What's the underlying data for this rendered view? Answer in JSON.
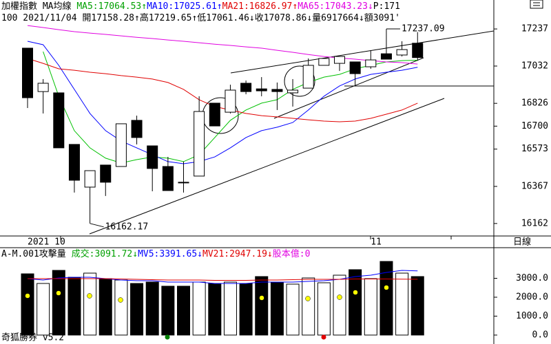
{
  "chart_data": [
    {
      "type": "candlestick",
      "header": [
        [
          {
            "text": "加權指數 MA均線 ",
            "color": "#000000"
          },
          {
            "text": "MA5:17064.53↑",
            "color": "#00a000"
          },
          {
            "text": "MA10:17025.61↑",
            "color": "#0000ff"
          },
          {
            "text": "MA21:16826.97↑",
            "color": "#e00000"
          },
          {
            "text": "MA65:17043.23↓",
            "color": "#e000e0"
          },
          {
            "text": "P:171",
            "color": "#000000"
          }
        ],
        [
          {
            "text": "100 2021/11/04 開17158.28↑高17219.65↑低17061.46↓收17078.86↓量6917664↓額3091'",
            "color": "#000000"
          }
        ]
      ],
      "categories": [
        "2021 10",
        null,
        null,
        null,
        null,
        null,
        null,
        null,
        null,
        null,
        null,
        null,
        null,
        null,
        null,
        null,
        null,
        null,
        null,
        null,
        null,
        null,
        "11",
        null,
        null,
        null
      ],
      "open": [
        17131,
        16891,
        16884,
        16599,
        16363,
        16485,
        16477,
        16732,
        16591,
        16477,
        16390,
        16424,
        16827,
        16777,
        16937,
        16906,
        16903,
        16884,
        16910,
        17036,
        17047,
        17055,
        17028,
        17100,
        17093,
        17158.28
      ],
      "high": [
        17131,
        16960,
        16884,
        16599,
        16454,
        16485,
        16713,
        16758,
        16591,
        16530,
        16504,
        16865,
        16827,
        16929,
        16952,
        16971,
        16941,
        16960,
        17074,
        17074,
        17085,
        17055,
        17119,
        17237.09,
        17169,
        17219.65
      ],
      "low": [
        16800,
        16770,
        16580,
        16333,
        16162.17,
        16314,
        16477,
        16599,
        16340,
        16344,
        16333,
        16424,
        16701,
        16770,
        16876,
        16865,
        16789,
        16808,
        16910,
        17036,
        17005,
        16925,
        17017,
        17070,
        17085,
        17061.46
      ],
      "close": [
        16857,
        16937,
        16580,
        16401,
        16454,
        16390,
        16713,
        16637,
        16466,
        16344,
        16390,
        16781,
        16701,
        16899,
        16891,
        16895,
        16891,
        16899,
        17036,
        17074,
        17085,
        16990,
        17066,
        17070,
        17123,
        17078.86
      ],
      "high_labels": [
        null,
        null,
        null,
        null,
        null,
        null,
        null,
        null,
        null,
        null,
        null,
        null,
        null,
        null,
        null,
        null,
        null,
        null,
        null,
        null,
        null,
        null,
        null,
        "17237.09",
        null,
        null
      ],
      "low_labels": [
        null,
        null,
        null,
        null,
        "16162.17",
        null,
        null,
        null,
        null,
        null,
        null,
        null,
        null,
        null,
        null,
        null,
        null,
        null,
        null,
        null,
        null,
        null,
        null,
        null,
        null,
        null
      ],
      "up_color": "#ffffff",
      "down_color": "#000000",
      "lines": [
        {
          "color": "#00c000",
          "values": [
            null,
            17112,
            16865,
            16675,
            16580,
            16523,
            16496,
            16515,
            16530,
            16523,
            16504,
            16542,
            16637,
            16732,
            16789,
            16827,
            16846,
            16903,
            16941,
            16971,
            16986,
            17017,
            17036,
            17055,
            17062,
            17064.53
          ]
        },
        {
          "color": "#0000ff",
          "values": [
            17169,
            17150,
            17036,
            16903,
            16770,
            16675,
            16618,
            16580,
            16542,
            16504,
            16492,
            16504,
            16530,
            16580,
            16637,
            16675,
            16694,
            16720,
            16789,
            16865,
            16922,
            16960,
            16986,
            16998,
            17009,
            17025.61
          ]
        },
        {
          "color": "#e00000",
          "values": [
            17074,
            17047,
            17017,
            17009,
            16998,
            16990,
            16979,
            16971,
            16960,
            16941,
            16903,
            16846,
            16808,
            16789,
            16770,
            16758,
            16751,
            16743,
            16735,
            16728,
            16724,
            16728,
            16743,
            16766,
            16789,
            16826.97
          ]
        },
        {
          "color": "#e000e0",
          "values": [
            17256,
            17245,
            17233,
            17222,
            17214,
            17207,
            17199,
            17191,
            17184,
            17176,
            17169,
            17161,
            17153,
            17146,
            17138,
            17131,
            17119,
            17108,
            17096,
            17085,
            17077,
            17070,
            17062,
            17055,
            17051,
            17043.23
          ]
        }
      ],
      "ylim": [
        16093,
        17397
      ],
      "yticks": [
        17237,
        17032,
        16826,
        16700,
        16573,
        16367,
        16162
      ],
      "period": "日線"
    },
    {
      "type": "bar",
      "header": [
        [
          {
            "text": "A-M.001攻擊量 ",
            "color": "#000000"
          },
          {
            "text": "成交:3091.72↓",
            "color": "#00a000"
          },
          {
            "text": "MV5:3391.65↓",
            "color": "#0000ff"
          },
          {
            "text": "MV21:2947.19↓",
            "color": "#e00000"
          },
          {
            "text": "股本億:0",
            "color": "#e000e0"
          }
        ]
      ],
      "values": [
        3236,
        2727,
        3418,
        3055,
        3273,
        2982,
        2909,
        2727,
        2800,
        2582,
        2582,
        2800,
        2727,
        2800,
        2727,
        3091,
        2800,
        2691,
        3018,
        2764,
        3164,
        3455,
        2982,
        3891,
        3273,
        3091.72
      ],
      "colors": [
        "#000000",
        "#ffffff",
        "#000000",
        "#000000",
        "#ffffff",
        "#000000",
        "#ffffff",
        "#000000",
        "#000000",
        "#000000",
        "#000000",
        "#ffffff",
        "#000000",
        "#ffffff",
        "#000000",
        "#000000",
        "#000000",
        "#ffffff",
        "#ffffff",
        "#ffffff",
        "#ffffff",
        "#000000",
        "#ffffff",
        "#000000",
        "#ffffff",
        "#000000"
      ],
      "lines": [
        {
          "color": "#0000ff",
          "values": [
            2982,
            2909,
            3018,
            3055,
            3055,
            2982,
            2909,
            2873,
            2873,
            2800,
            2800,
            2800,
            2727,
            2727,
            2727,
            2800,
            2800,
            2800,
            2836,
            2873,
            2945,
            3091,
            3164,
            3309,
            3418,
            3391.65
          ]
        },
        {
          "color": "#e00000",
          "values": [
            2982,
            2982,
            2982,
            2982,
            2982,
            2982,
            2964,
            2945,
            2927,
            2909,
            2909,
            2909,
            2891,
            2891,
            2891,
            2909,
            2909,
            2927,
            2945,
            2945,
            2945,
            2964,
            2964,
            2964,
            2955,
            2947.19
          ]
        }
      ],
      "ylim": [
        -473,
        4618
      ],
      "yticks": [
        {
          "value": 3000,
          "label": "3000.0"
        },
        {
          "value": 2000,
          "label": "2000.0"
        },
        {
          "value": 1000,
          "label": "1000.0"
        },
        {
          "value": 0,
          "label": "0.0"
        }
      ]
    }
  ],
  "footer": "奇狐勝券 v5.2"
}
